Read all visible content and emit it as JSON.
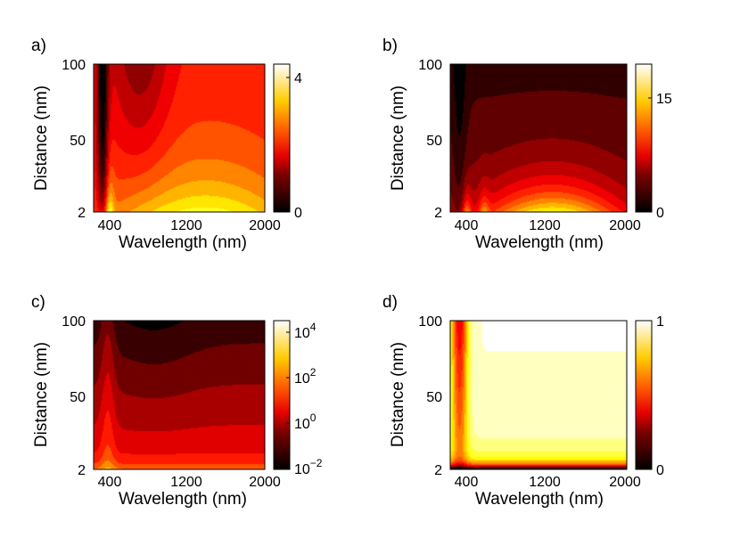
{
  "chart_data": [
    {
      "panel_label": "a)",
      "type": "heatmap",
      "xlabel": "Wavelength (nm)",
      "ylabel": "Distance (nm)",
      "xticks": [
        "400",
        "1200",
        "2000"
      ],
      "yticks": [
        "2",
        "50",
        "100"
      ],
      "xlim": [
        200,
        2000
      ],
      "ylim": [
        2,
        100
      ],
      "colorbar": {
        "scale": "linear",
        "range": [
          0,
          4.6
        ],
        "ticks": [
          "0",
          "4"
        ]
      }
    },
    {
      "panel_label": "b)",
      "type": "heatmap",
      "xlabel": "Wavelength (nm)",
      "ylabel": "Distance (nm)",
      "xticks": [
        "400",
        "1200",
        "2000"
      ],
      "yticks": [
        "2",
        "50",
        "100"
      ],
      "xlim": [
        200,
        2000
      ],
      "ylim": [
        2,
        100
      ],
      "colorbar": {
        "scale": "linear",
        "range": [
          0,
          19.5
        ],
        "ticks": [
          "0",
          "15"
        ]
      }
    },
    {
      "panel_label": "c)",
      "type": "heatmap",
      "xlabel": "Wavelength (nm)",
      "ylabel": "Distance (nm)",
      "xticks": [
        "400",
        "1200",
        "2000"
      ],
      "yticks": [
        "2",
        "50",
        "100"
      ],
      "xlim": [
        200,
        2000
      ],
      "ylim": [
        2,
        100
      ],
      "colorbar": {
        "scale": "log",
        "range": [
          0.01,
          10000
        ],
        "ticks": [
          {
            "base": "10",
            "exp": "−2"
          },
          {
            "base": "10",
            "exp": "0"
          },
          {
            "base": "10",
            "exp": "2"
          },
          {
            "base": "10",
            "exp": "4"
          }
        ]
      }
    },
    {
      "panel_label": "d)",
      "type": "heatmap",
      "xlabel": "Wavelength (nm)",
      "ylabel": "Distance (nm)",
      "xticks": [
        "400",
        "1200",
        "2000"
      ],
      "yticks": [
        "2",
        "50",
        "100"
      ],
      "xlim": [
        200,
        2000
      ],
      "ylim": [
        2,
        100
      ],
      "colorbar": {
        "scale": "linear",
        "range": [
          0,
          1
        ],
        "ticks": [
          "0",
          "1"
        ]
      }
    }
  ]
}
